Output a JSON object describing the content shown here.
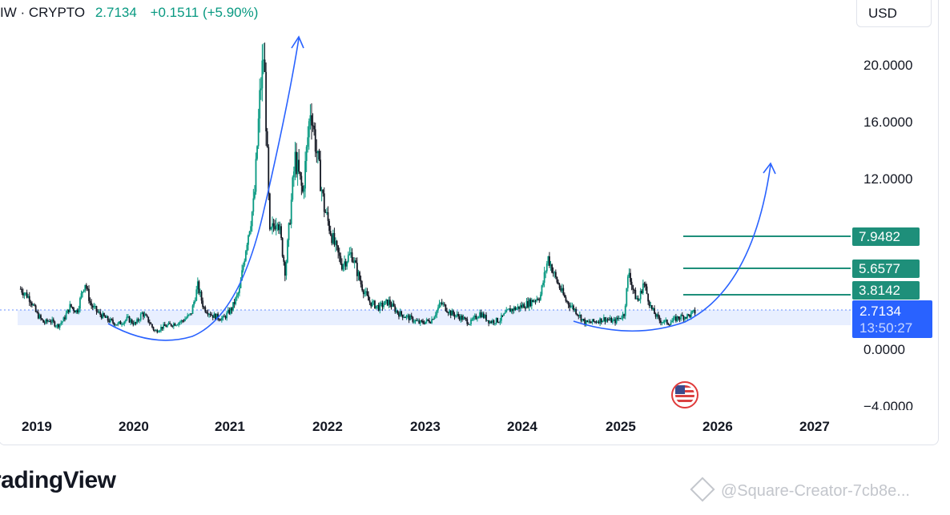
{
  "legend": {
    "symbol": "IW · CRYPTO",
    "price": "2.7134",
    "change": "+0.1511 (+5.90%)"
  },
  "currency_button": "USD",
  "price_tags": {
    "level_1": "7.9482",
    "level_2": "5.6577",
    "level_3": "3.8142",
    "last_price": "2.7134",
    "countdown": "13:50:27"
  },
  "y_ticks": [
    "20.0000",
    "16.0000",
    "12.0000",
    "0.0000",
    "−4.0000"
  ],
  "x_ticks": [
    "2019",
    "2020",
    "2021",
    "2022",
    "2023",
    "2024",
    "2025",
    "2026",
    "2027"
  ],
  "branding": "radingView",
  "watermark": "@Square-Creator-7cb8e...",
  "colors": {
    "up": "#089981",
    "down": "#131722",
    "target_lines": "#1e8f7a",
    "annotation_arrows": "#2962ff",
    "last_price_tag": "#2962ff",
    "range_band": "#e8efff"
  },
  "icons": [
    "us-flag-icon",
    "binance-square-icon"
  ],
  "chart_data": {
    "type": "candlestick",
    "ylim": [
      -4,
      22
    ],
    "xlim": [
      2018.75,
      2027.1
    ],
    "last_price": 2.7134,
    "target_levels": [
      7.9482,
      5.6577,
      3.8142
    ],
    "range_band": [
      1.55,
      2.75
    ],
    "grid": false,
    "series_close": [
      [
        2018.8,
        4.3
      ],
      [
        2018.9,
        3.6
      ],
      [
        2018.96,
        2.6
      ],
      [
        2019.04,
        1.9
      ],
      [
        2019.1,
        2.1
      ],
      [
        2019.18,
        1.7
      ],
      [
        2019.24,
        2.1
      ],
      [
        2019.31,
        3.1
      ],
      [
        2019.38,
        2.7
      ],
      [
        2019.46,
        4.8
      ],
      [
        2019.52,
        3.2
      ],
      [
        2019.6,
        2.6
      ],
      [
        2019.7,
        2.1
      ],
      [
        2019.8,
        1.8
      ],
      [
        2019.9,
        2.2
      ],
      [
        2019.98,
        1.8
      ],
      [
        2020.05,
        2.6
      ],
      [
        2020.12,
        2.0
      ],
      [
        2020.18,
        1.3
      ],
      [
        2020.25,
        1.6
      ],
      [
        2020.35,
        1.8
      ],
      [
        2020.45,
        2.0
      ],
      [
        2020.55,
        2.5
      ],
      [
        2020.62,
        4.5
      ],
      [
        2020.68,
        3.0
      ],
      [
        2020.78,
        2.4
      ],
      [
        2020.88,
        2.2
      ],
      [
        2020.97,
        2.9
      ],
      [
        2021.05,
        4.2
      ],
      [
        2021.12,
        7.5
      ],
      [
        2021.2,
        10.5
      ],
      [
        2021.26,
        18.0
      ],
      [
        2021.3,
        21.0
      ],
      [
        2021.36,
        8.0
      ],
      [
        2021.44,
        9.5
      ],
      [
        2021.52,
        5.5
      ],
      [
        2021.62,
        13.5
      ],
      [
        2021.7,
        11.0
      ],
      [
        2021.78,
        17.2
      ],
      [
        2021.84,
        14.0
      ],
      [
        2021.92,
        10.0
      ],
      [
        2022.02,
        7.5
      ],
      [
        2022.1,
        6.0
      ],
      [
        2022.2,
        6.8
      ],
      [
        2022.3,
        4.6
      ],
      [
        2022.38,
        3.4
      ],
      [
        2022.48,
        3.0
      ],
      [
        2022.58,
        3.4
      ],
      [
        2022.68,
        2.6
      ],
      [
        2022.78,
        2.3
      ],
      [
        2022.9,
        1.9
      ],
      [
        2023.02,
        2.1
      ],
      [
        2023.12,
        3.3
      ],
      [
        2023.22,
        2.6
      ],
      [
        2023.32,
        2.3
      ],
      [
        2023.42,
        1.9
      ],
      [
        2023.52,
        2.6
      ],
      [
        2023.62,
        2.0
      ],
      [
        2023.72,
        2.1
      ],
      [
        2023.82,
        2.8
      ],
      [
        2023.92,
        3.0
      ],
      [
        2024.02,
        3.3
      ],
      [
        2024.14,
        3.8
      ],
      [
        2024.22,
        6.5
      ],
      [
        2024.3,
        5.0
      ],
      [
        2024.4,
        3.5
      ],
      [
        2024.5,
        2.8
      ],
      [
        2024.6,
        1.9
      ],
      [
        2024.7,
        2.0
      ],
      [
        2024.8,
        2.2
      ],
      [
        2024.9,
        2.0
      ],
      [
        2025.0,
        2.5
      ],
      [
        2025.05,
        5.6
      ],
      [
        2025.1,
        4.0
      ],
      [
        2025.15,
        3.4
      ],
      [
        2025.2,
        4.8
      ],
      [
        2025.28,
        2.9
      ],
      [
        2025.36,
        2.1
      ],
      [
        2025.46,
        1.9
      ],
      [
        2025.56,
        2.3
      ],
      [
        2025.66,
        2.4
      ],
      [
        2025.74,
        2.7134
      ]
    ]
  }
}
